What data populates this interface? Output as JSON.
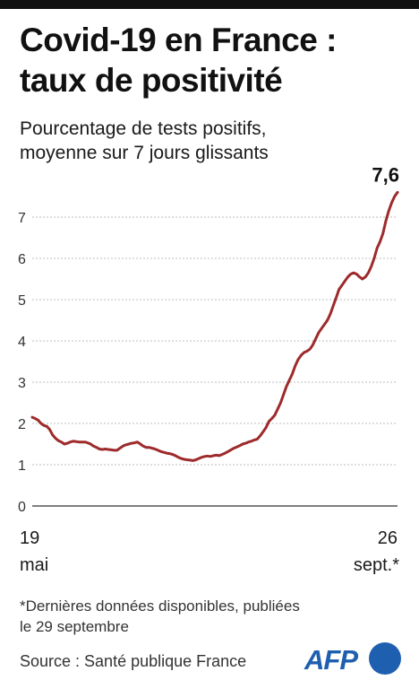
{
  "header": {
    "title_line1": "Covid-19 en France :",
    "title_line2": "taux de positivité",
    "subtitle_line1": "Pourcentage de tests positifs,",
    "subtitle_line2": "moyenne sur 7 jours glissants"
  },
  "chart_data": {
    "type": "line",
    "title": "Covid-19 en France : taux de positivité",
    "subtitle": "Pourcentage de tests positifs, moyenne sur 7 jours glissants",
    "xlabel": "",
    "ylabel": "",
    "x_start": "2020-05-19",
    "x_end": "2020-09-26",
    "x_tick_labels": [
      {
        "day": "19",
        "month": "mai"
      },
      {
        "day": "26",
        "month": "sept.*"
      }
    ],
    "ylim": [
      0,
      8
    ],
    "y_ticks": [
      0,
      1,
      2,
      3,
      4,
      5,
      6,
      7
    ],
    "grid": true,
    "series": [
      {
        "color": "#9e2a2b",
        "values": [
          2.15,
          2.12,
          2.08,
          2.0,
          1.95,
          1.93,
          1.85,
          1.72,
          1.64,
          1.58,
          1.55,
          1.5,
          1.52,
          1.55,
          1.57,
          1.56,
          1.55,
          1.55,
          1.55,
          1.53,
          1.5,
          1.45,
          1.42,
          1.38,
          1.37,
          1.38,
          1.37,
          1.36,
          1.35,
          1.35,
          1.4,
          1.45,
          1.48,
          1.5,
          1.52,
          1.53,
          1.55,
          1.5,
          1.45,
          1.42,
          1.42,
          1.4,
          1.38,
          1.35,
          1.32,
          1.3,
          1.28,
          1.27,
          1.25,
          1.22,
          1.18,
          1.15,
          1.13,
          1.12,
          1.11,
          1.1,
          1.12,
          1.15,
          1.18,
          1.2,
          1.21,
          1.2,
          1.22,
          1.23,
          1.22,
          1.25,
          1.28,
          1.32,
          1.36,
          1.4,
          1.43,
          1.46,
          1.5,
          1.52,
          1.55,
          1.57,
          1.6,
          1.62,
          1.7,
          1.8,
          1.9,
          2.05,
          2.12,
          2.2,
          2.35,
          2.5,
          2.7,
          2.9,
          3.05,
          3.2,
          3.4,
          3.55,
          3.65,
          3.72,
          3.75,
          3.8,
          3.9,
          4.05,
          4.2,
          4.3,
          4.4,
          4.5,
          4.65,
          4.85,
          5.05,
          5.25,
          5.35,
          5.45,
          5.55,
          5.62,
          5.65,
          5.62,
          5.55,
          5.5,
          5.55,
          5.65,
          5.8,
          6.0,
          6.25,
          6.4,
          6.6,
          6.9,
          7.15,
          7.35,
          7.5,
          7.6
        ]
      }
    ],
    "annotations": [
      {
        "text": "7,6",
        "at": "last"
      }
    ]
  },
  "footnote": {
    "line1": "*Dernières données disponibles, publiées",
    "line2": "le 29 septembre"
  },
  "source": "Source : Santé publique France",
  "logo": {
    "text": "AFP",
    "color": "#1f5fb0"
  }
}
